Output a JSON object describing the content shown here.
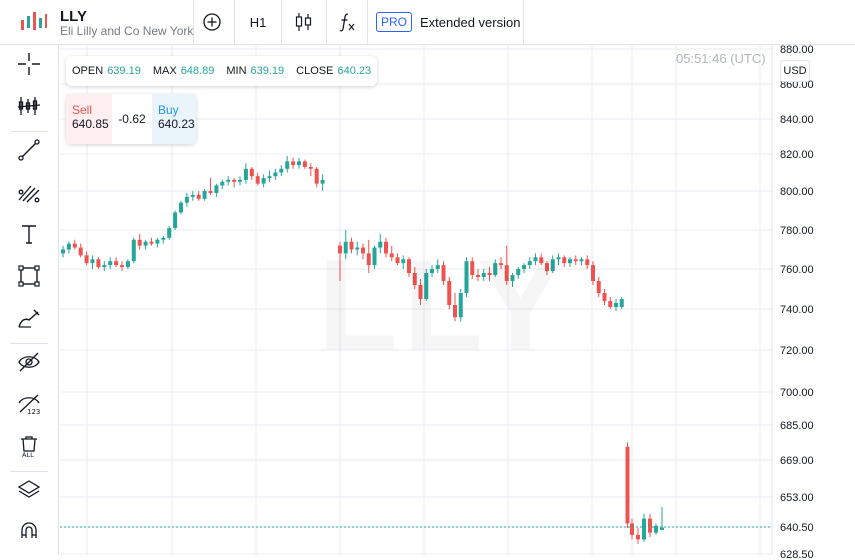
{
  "header": {
    "symbol": "LLY",
    "name": "Eli Lilly and Co New York",
    "timeframe": "H1",
    "pro_badge": "PRO",
    "extended_label": "Extended version"
  },
  "ohlc": {
    "open_label": "OPEN",
    "open": "639.19",
    "max_label": "MAX",
    "max": "648.89",
    "min_label": "MIN",
    "min": "639.19",
    "close_label": "CLOSE",
    "close": "640.23"
  },
  "trade": {
    "sell_label": "Sell",
    "sell": "640.85",
    "spread": "-0.62",
    "buy_label": "Buy",
    "buy": "640.23"
  },
  "time": "05:51:46 (UTC)",
  "currency": "USD",
  "watermark": "LLY",
  "colors": {
    "up": "#26a69a",
    "down": "#ef5350",
    "current_line": "#26a69a",
    "grid": "#e9ebf0"
  },
  "sidebar_icons": [
    "crosshair-icon",
    "indicators-icon",
    "trend-line-icon",
    "fib-icon",
    "text-icon",
    "rectangle-icon",
    "brush-icon",
    "hide-drawings-icon",
    "hide-123-icon",
    "delete-all-icon",
    "layers-icon",
    "magnet-icon"
  ],
  "chart_data": {
    "type": "candlestick",
    "ytick_labels": [
      "880.00",
      "860.00",
      "840.00",
      "820.00",
      "800.00",
      "780.00",
      "760.00",
      "740.00",
      "720.00",
      "700.00",
      "685.00",
      "669.00",
      "653.00",
      "640.50",
      "628.50"
    ],
    "current_price": "640.50",
    "candles": [
      {
        "o": 768,
        "h": 772,
        "l": 766,
        "c": 770
      },
      {
        "o": 770,
        "h": 774,
        "l": 768,
        "c": 773
      },
      {
        "o": 773,
        "h": 775,
        "l": 770,
        "c": 771
      },
      {
        "o": 771,
        "h": 773,
        "l": 766,
        "c": 767
      },
      {
        "o": 767,
        "h": 769,
        "l": 762,
        "c": 763
      },
      {
        "o": 763,
        "h": 767,
        "l": 760,
        "c": 765
      },
      {
        "o": 765,
        "h": 766,
        "l": 760,
        "c": 761
      },
      {
        "o": 761,
        "h": 764,
        "l": 759,
        "c": 762
      },
      {
        "o": 762,
        "h": 766,
        "l": 760,
        "c": 764
      },
      {
        "o": 764,
        "h": 766,
        "l": 761,
        "c": 762
      },
      {
        "o": 762,
        "h": 764,
        "l": 759,
        "c": 761
      },
      {
        "o": 761,
        "h": 765,
        "l": 760,
        "c": 764
      },
      {
        "o": 764,
        "h": 776,
        "l": 763,
        "c": 775
      },
      {
        "o": 775,
        "h": 778,
        "l": 770,
        "c": 772
      },
      {
        "o": 772,
        "h": 775,
        "l": 770,
        "c": 774
      },
      {
        "o": 774,
        "h": 776,
        "l": 772,
        "c": 773
      },
      {
        "o": 773,
        "h": 776,
        "l": 771,
        "c": 775
      },
      {
        "o": 775,
        "h": 777,
        "l": 773,
        "c": 776
      },
      {
        "o": 776,
        "h": 782,
        "l": 775,
        "c": 781
      },
      {
        "o": 781,
        "h": 790,
        "l": 780,
        "c": 789
      },
      {
        "o": 789,
        "h": 795,
        "l": 788,
        "c": 794
      },
      {
        "o": 794,
        "h": 799,
        "l": 792,
        "c": 797
      },
      {
        "o": 797,
        "h": 800,
        "l": 795,
        "c": 798
      },
      {
        "o": 798,
        "h": 800,
        "l": 795,
        "c": 796
      },
      {
        "o": 796,
        "h": 801,
        "l": 795,
        "c": 800
      },
      {
        "o": 800,
        "h": 807,
        "l": 798,
        "c": 799
      },
      {
        "o": 799,
        "h": 804,
        "l": 797,
        "c": 803
      },
      {
        "o": 803,
        "h": 806,
        "l": 801,
        "c": 805
      },
      {
        "o": 805,
        "h": 808,
        "l": 803,
        "c": 806
      },
      {
        "o": 806,
        "h": 807,
        "l": 802,
        "c": 805
      },
      {
        "o": 805,
        "h": 808,
        "l": 803,
        "c": 806
      },
      {
        "o": 806,
        "h": 815,
        "l": 804,
        "c": 812
      },
      {
        "o": 812,
        "h": 813,
        "l": 806,
        "c": 808
      },
      {
        "o": 808,
        "h": 810,
        "l": 803,
        "c": 804
      },
      {
        "o": 804,
        "h": 809,
        "l": 802,
        "c": 807
      },
      {
        "o": 807,
        "h": 811,
        "l": 805,
        "c": 808
      },
      {
        "o": 808,
        "h": 812,
        "l": 806,
        "c": 810
      },
      {
        "o": 810,
        "h": 814,
        "l": 808,
        "c": 812
      },
      {
        "o": 812,
        "h": 819,
        "l": 810,
        "c": 816
      },
      {
        "o": 816,
        "h": 818,
        "l": 812,
        "c": 814
      },
      {
        "o": 814,
        "h": 818,
        "l": 812,
        "c": 816
      },
      {
        "o": 816,
        "h": 817,
        "l": 812,
        "c": 813
      },
      {
        "o": 813,
        "h": 815,
        "l": 808,
        "c": 812
      },
      {
        "o": 812,
        "h": 813,
        "l": 802,
        "c": 804
      },
      {
        "o": 804,
        "h": 809,
        "l": 800,
        "c": 806
      },
      {
        "o": 772,
        "h": 774,
        "l": 754,
        "c": 768
      },
      {
        "o": 768,
        "h": 780,
        "l": 765,
        "c": 774
      },
      {
        "o": 774,
        "h": 776,
        "l": 768,
        "c": 770
      },
      {
        "o": 770,
        "h": 774,
        "l": 767,
        "c": 771
      },
      {
        "o": 771,
        "h": 773,
        "l": 765,
        "c": 768
      },
      {
        "o": 768,
        "h": 775,
        "l": 758,
        "c": 762
      },
      {
        "o": 762,
        "h": 772,
        "l": 760,
        "c": 771
      },
      {
        "o": 771,
        "h": 778,
        "l": 768,
        "c": 774
      },
      {
        "o": 774,
        "h": 776,
        "l": 766,
        "c": 768
      },
      {
        "o": 768,
        "h": 772,
        "l": 764,
        "c": 766
      },
      {
        "o": 766,
        "h": 768,
        "l": 762,
        "c": 763
      },
      {
        "o": 763,
        "h": 767,
        "l": 760,
        "c": 765
      },
      {
        "o": 765,
        "h": 766,
        "l": 756,
        "c": 758
      },
      {
        "o": 758,
        "h": 761,
        "l": 750,
        "c": 752
      },
      {
        "o": 752,
        "h": 755,
        "l": 742,
        "c": 745
      },
      {
        "o": 745,
        "h": 760,
        "l": 744,
        "c": 758
      },
      {
        "o": 758,
        "h": 762,
        "l": 756,
        "c": 760
      },
      {
        "o": 760,
        "h": 765,
        "l": 758,
        "c": 762
      },
      {
        "o": 762,
        "h": 764,
        "l": 752,
        "c": 754
      },
      {
        "o": 754,
        "h": 756,
        "l": 740,
        "c": 742
      },
      {
        "o": 742,
        "h": 748,
        "l": 734,
        "c": 736
      },
      {
        "o": 736,
        "h": 750,
        "l": 734,
        "c": 748
      },
      {
        "o": 748,
        "h": 766,
        "l": 746,
        "c": 764
      },
      {
        "o": 764,
        "h": 766,
        "l": 755,
        "c": 757
      },
      {
        "o": 757,
        "h": 760,
        "l": 754,
        "c": 756
      },
      {
        "o": 756,
        "h": 760,
        "l": 754,
        "c": 758
      },
      {
        "o": 758,
        "h": 761,
        "l": 754,
        "c": 757
      },
      {
        "o": 757,
        "h": 765,
        "l": 756,
        "c": 763
      },
      {
        "o": 763,
        "h": 766,
        "l": 760,
        "c": 762
      },
      {
        "o": 762,
        "h": 772,
        "l": 752,
        "c": 754
      },
      {
        "o": 754,
        "h": 758,
        "l": 751,
        "c": 757
      },
      {
        "o": 757,
        "h": 761,
        "l": 755,
        "c": 760
      },
      {
        "o": 760,
        "h": 763,
        "l": 758,
        "c": 762
      },
      {
        "o": 762,
        "h": 766,
        "l": 760,
        "c": 764
      },
      {
        "o": 764,
        "h": 768,
        "l": 762,
        "c": 766
      },
      {
        "o": 766,
        "h": 768,
        "l": 762,
        "c": 763
      },
      {
        "o": 763,
        "h": 764,
        "l": 757,
        "c": 759
      },
      {
        "o": 759,
        "h": 767,
        "l": 758,
        "c": 765
      },
      {
        "o": 765,
        "h": 768,
        "l": 762,
        "c": 766
      },
      {
        "o": 766,
        "h": 767,
        "l": 761,
        "c": 763
      },
      {
        "o": 763,
        "h": 766,
        "l": 761,
        "c": 765
      },
      {
        "o": 765,
        "h": 767,
        "l": 762,
        "c": 764
      },
      {
        "o": 764,
        "h": 766,
        "l": 762,
        "c": 765
      },
      {
        "o": 765,
        "h": 767,
        "l": 760,
        "c": 762
      },
      {
        "o": 762,
        "h": 764,
        "l": 752,
        "c": 754
      },
      {
        "o": 754,
        "h": 756,
        "l": 746,
        "c": 748
      },
      {
        "o": 748,
        "h": 750,
        "l": 742,
        "c": 744
      },
      {
        "o": 744,
        "h": 746,
        "l": 740,
        "c": 741
      },
      {
        "o": 741,
        "h": 745,
        "l": 739,
        "c": 743
      },
      {
        "o": 741,
        "h": 746,
        "l": 740,
        "c": 745
      },
      {
        "o": 675,
        "h": 677,
        "l": 640,
        "c": 642
      },
      {
        "o": 642,
        "h": 644,
        "l": 635,
        "c": 637
      },
      {
        "o": 637,
        "h": 640,
        "l": 633,
        "c": 635
      },
      {
        "o": 635,
        "h": 646,
        "l": 634,
        "c": 644
      },
      {
        "o": 644,
        "h": 646,
        "l": 636,
        "c": 638
      },
      {
        "o": 638,
        "h": 642,
        "l": 637,
        "c": 641
      },
      {
        "o": 639.19,
        "h": 648.89,
        "l": 639.19,
        "c": 640.23
      }
    ]
  }
}
